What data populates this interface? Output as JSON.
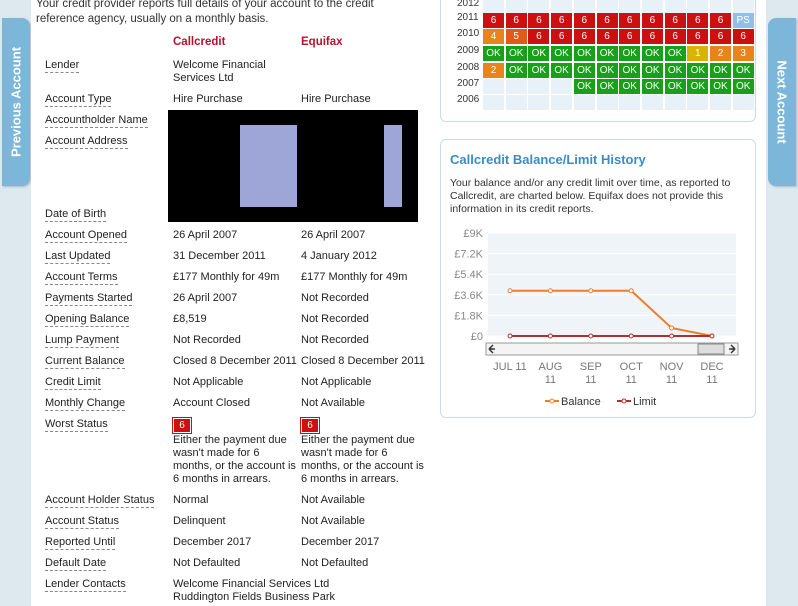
{
  "nav": {
    "previous_label": "Previous Account",
    "next_label": "Next Account"
  },
  "intro": "Your credit provider reports full details of your account to the credit reference agency, usually on a monthly basis.",
  "columns": {
    "col1": "Callcredit",
    "col2": "Equifax"
  },
  "rows": [
    {
      "label": "Lender",
      "v1": "Welcome Financial Services Ltd",
      "v2": ""
    },
    {
      "label": "Account Type",
      "v1": "Hire Purchase",
      "v2": "Hire Purchase"
    },
    {
      "label": "Accountholder Name",
      "v1": "",
      "v2": ""
    },
    {
      "label": "Account Address",
      "v1": "",
      "v2": ""
    },
    {
      "label": "Date of Birth",
      "v1": "",
      "v2": ""
    },
    {
      "label": "Account Opened",
      "v1": "26 April 2007",
      "v2": "26 April 2007"
    },
    {
      "label": "Last Updated",
      "v1": "31 December 2011",
      "v2": "4 January 2012"
    },
    {
      "label": "Account Terms",
      "v1": "£177 Monthly for 49m",
      "v2": "£177 Monthly for 49m"
    },
    {
      "label": "Payments Started",
      "v1": "26 April 2007",
      "v2": "Not Recorded"
    },
    {
      "label": "Opening Balance",
      "v1": "£8,519",
      "v2": "Not Recorded"
    },
    {
      "label": "Lump Payment",
      "v1": "Not Recorded",
      "v2": "Not Recorded"
    },
    {
      "label": "Current Balance",
      "v1": "Closed 8 December 2011",
      "v2": "Closed 8 December 2011"
    },
    {
      "label": "Credit Limit",
      "v1": "Not Applicable",
      "v2": "Not Applicable"
    },
    {
      "label": "Monthly Change",
      "v1": "Account Closed",
      "v2": "Not Available"
    },
    {
      "label": "Worst Status",
      "v1": "Either the payment due wasn't made for 6 months, or the account is 6 months in arrears.",
      "v2": "Either the payment due wasn't made for 6 months, or the account is 6 months in arrears."
    },
    {
      "label": "Account Holder Status",
      "v1": "Normal",
      "v2": "Not Available"
    },
    {
      "label": "Account Status",
      "v1": "Delinquent",
      "v2": "Not Available"
    },
    {
      "label": "Reported Until",
      "v1": "December 2017",
      "v2": "December 2017"
    },
    {
      "label": "Default Date",
      "v1": "Not Defaulted",
      "v2": "Not Defaulted"
    },
    {
      "label": "Lender Contacts",
      "v1": "Welcome Financial Services Ltd",
      "v2": ""
    }
  ],
  "lender_contacts_line2": "Ruddington Fields Business Park",
  "worst_status_badge": {
    "v1": "6",
    "v2": "6"
  },
  "history": {
    "years": [
      "2012",
      "2011",
      "2010",
      "2009",
      "2008",
      "2007",
      "2006"
    ],
    "rows": {
      "2012": [],
      "2011": [
        "6",
        "6",
        "6",
        "6",
        "6",
        "6",
        "6",
        "6",
        "6",
        "6",
        "6",
        "PS"
      ],
      "2010": [
        "4",
        "5",
        "6",
        "6",
        "6",
        "6",
        "6",
        "6",
        "6",
        "6",
        "6",
        "6"
      ],
      "2009": [
        "OK",
        "OK",
        "OK",
        "OK",
        "OK",
        "OK",
        "OK",
        "OK",
        "OK",
        "1",
        "2",
        "3"
      ],
      "2008": [
        "2",
        "OK",
        "OK",
        "OK",
        "OK",
        "OK",
        "OK",
        "OK",
        "OK",
        "OK",
        "OK",
        "OK"
      ],
      "2007": [
        "",
        "",
        "",
        "",
        "OK",
        "OK",
        "OK",
        "OK",
        "OK",
        "OK",
        "OK",
        "OK"
      ],
      "2006": []
    }
  },
  "chart_panel": {
    "title": "Callcredit Balance/Limit History",
    "description": "Your balance and/or any credit limit over time, as reported to Callcredit, are charted below. Equifax does not provide this information in its credit reports."
  },
  "chart_data": {
    "type": "line",
    "categories": [
      "JUL 11",
      "AUG 11",
      "SEP 11",
      "OCT 11",
      "NOV 11",
      "DEC 11"
    ],
    "series": [
      {
        "name": "Balance",
        "color": "#f07d2a",
        "values": [
          3950,
          3950,
          3950,
          3950,
          700,
          0
        ]
      },
      {
        "name": "Limit",
        "color": "#b03030",
        "values": [
          0,
          0,
          0,
          0,
          0,
          0
        ]
      }
    ],
    "ylim": [
      0,
      9000
    ],
    "yticks": [
      "£0",
      "£1.8K",
      "£3.6K",
      "£5.4K",
      "£7.2K",
      "£9K"
    ],
    "legend": "bottom"
  }
}
